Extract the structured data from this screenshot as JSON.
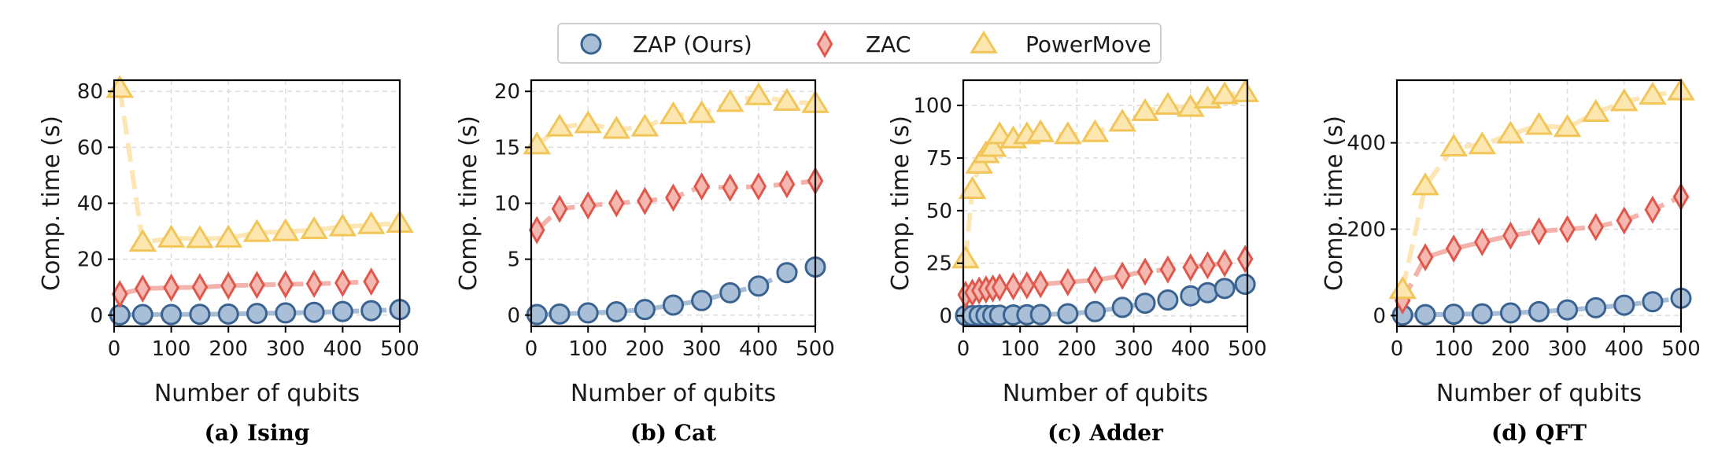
{
  "legend": {
    "placement": "top-center",
    "entries": [
      {
        "label": "ZAP (Ours)",
        "marker": "circle"
      },
      {
        "label": "ZAC",
        "marker": "diamond"
      },
      {
        "label": "PowerMove",
        "marker": "triangle"
      }
    ]
  },
  "colors": {
    "ZAP (Ours)": {
      "fill": "#a9bfd8",
      "stroke": "#3a6391",
      "line": "#9fb7d3"
    },
    "ZAC": {
      "fill": "#f4b8b0",
      "stroke": "#e0574c",
      "line": "#f2aaa2"
    },
    "PowerMove": {
      "fill": "#fde7b0",
      "stroke": "#f2c559",
      "line": "#fce3ad"
    }
  },
  "chart_data": [
    {
      "type": "line",
      "caption": "(a) Ising",
      "xlabel": "Number of qubits",
      "ylabel": "Comp. time (s)",
      "xlim": [
        0,
        500
      ],
      "ylim": [
        -4,
        84
      ],
      "xticks": [
        0,
        100,
        200,
        300,
        400,
        500
      ],
      "yticks": [
        0,
        20,
        40,
        60,
        80
      ],
      "grid": true,
      "series": [
        {
          "name": "ZAP (Ours)",
          "x": [
            10,
            50,
            100,
            150,
            200,
            250,
            300,
            350,
            400,
            450,
            500
          ],
          "y": [
            0.1,
            0.2,
            0.2,
            0.3,
            0.4,
            0.6,
            0.8,
            1.0,
            1.3,
            1.6,
            2.0
          ]
        },
        {
          "name": "ZAC",
          "x": [
            10,
            50,
            100,
            150,
            200,
            250,
            300,
            350,
            400,
            450
          ],
          "y": [
            7.5,
            9.5,
            9.8,
            10.0,
            10.5,
            10.8,
            11.0,
            11.2,
            11.5,
            12.0
          ]
        },
        {
          "name": "PowerMove",
          "x": [
            10,
            50,
            100,
            150,
            200,
            250,
            300,
            350,
            400,
            450,
            500
          ],
          "y": [
            81,
            26,
            27.5,
            27.3,
            27.5,
            29.5,
            29.8,
            30.5,
            31.5,
            32.3,
            32.8
          ]
        }
      ]
    },
    {
      "type": "line",
      "caption": "(b) Cat",
      "xlabel": "Number of qubits",
      "ylabel": "Comp. time (s)",
      "xlim": [
        0,
        500
      ],
      "ylim": [
        -1,
        21
      ],
      "xticks": [
        0,
        100,
        200,
        300,
        400,
        500
      ],
      "yticks": [
        0,
        5,
        10,
        15,
        20
      ],
      "grid": true,
      "series": [
        {
          "name": "ZAP (Ours)",
          "x": [
            10,
            50,
            100,
            150,
            200,
            250,
            300,
            350,
            400,
            450,
            500
          ],
          "y": [
            0.05,
            0.1,
            0.2,
            0.3,
            0.5,
            0.9,
            1.3,
            2.0,
            2.6,
            3.8,
            4.3
          ]
        },
        {
          "name": "ZAC",
          "x": [
            10,
            50,
            100,
            150,
            200,
            250,
            300,
            350,
            400,
            450,
            500
          ],
          "y": [
            7.6,
            9.5,
            9.8,
            10.0,
            10.2,
            10.5,
            11.5,
            11.4,
            11.5,
            11.7,
            12.0
          ]
        },
        {
          "name": "PowerMove",
          "x": [
            10,
            50,
            100,
            150,
            200,
            250,
            300,
            350,
            400,
            450,
            500
          ],
          "y": [
            15.2,
            16.8,
            17.1,
            16.6,
            16.8,
            17.9,
            18.0,
            19.0,
            19.6,
            19.1,
            18.9
          ]
        }
      ]
    },
    {
      "type": "line",
      "caption": "(c) Adder",
      "xlabel": "Number of qubits",
      "ylabel": "Comp. time (s)",
      "xlim": [
        0,
        500
      ],
      "ylim": [
        -5,
        112
      ],
      "xticks": [
        0,
        100,
        200,
        300,
        400,
        500
      ],
      "yticks": [
        0,
        25,
        50,
        75,
        100
      ],
      "grid": true,
      "series": [
        {
          "name": "ZAP (Ours)",
          "x": [
            4,
            16,
            28,
            40,
            52,
            64,
            88,
            112,
            136,
            184,
            232,
            280,
            320,
            360,
            400,
            430,
            460,
            496
          ],
          "y": [
            0.1,
            0.1,
            0.2,
            0.2,
            0.2,
            0.3,
            0.4,
            0.5,
            0.6,
            1.0,
            2.0,
            4.0,
            6.0,
            7.5,
            9.5,
            11.0,
            13.0,
            15.0
          ]
        },
        {
          "name": "ZAC",
          "x": [
            4,
            16,
            28,
            40,
            52,
            64,
            88,
            112,
            136,
            184,
            232,
            280,
            320,
            360,
            400,
            430,
            460,
            496
          ],
          "y": [
            10,
            11,
            12,
            12.5,
            13,
            13.5,
            14,
            14.5,
            15,
            16,
            17,
            19,
            21,
            22,
            23,
            24,
            25,
            27
          ]
        },
        {
          "name": "PowerMove",
          "x": [
            4,
            16,
            28,
            40,
            52,
            64,
            88,
            112,
            136,
            184,
            232,
            280,
            320,
            360,
            400,
            430,
            460,
            496
          ],
          "y": [
            27,
            60,
            72,
            77,
            80,
            86,
            84,
            86,
            87,
            86,
            87,
            92,
            97,
            100,
            99,
            103,
            105,
            106
          ]
        }
      ]
    },
    {
      "type": "line",
      "caption": "(d) QFT",
      "xlabel": "Number of qubits",
      "ylabel": "Comp. time (s)",
      "xlim": [
        0,
        500
      ],
      "ylim": [
        -25,
        545
      ],
      "xticks": [
        0,
        100,
        200,
        300,
        400,
        500
      ],
      "yticks": [
        0,
        200,
        400
      ],
      "grid": true,
      "series": [
        {
          "name": "ZAP (Ours)",
          "x": [
            10,
            50,
            100,
            150,
            200,
            250,
            300,
            350,
            400,
            450,
            500
          ],
          "y": [
            1,
            2,
            3,
            4,
            6,
            9,
            13,
            18,
            24,
            32,
            40
          ]
        },
        {
          "name": "ZAC",
          "x": [
            10,
            50,
            100,
            150,
            200,
            250,
            300,
            350,
            400,
            450,
            500
          ],
          "y": [
            35,
            135,
            155,
            170,
            185,
            195,
            200,
            205,
            220,
            245,
            275
          ]
        },
        {
          "name": "PowerMove",
          "x": [
            10,
            50,
            100,
            150,
            200,
            250,
            300,
            350,
            400,
            450,
            500
          ],
          "y": [
            60,
            300,
            390,
            395,
            420,
            440,
            435,
            470,
            495,
            510,
            520
          ]
        }
      ]
    }
  ]
}
